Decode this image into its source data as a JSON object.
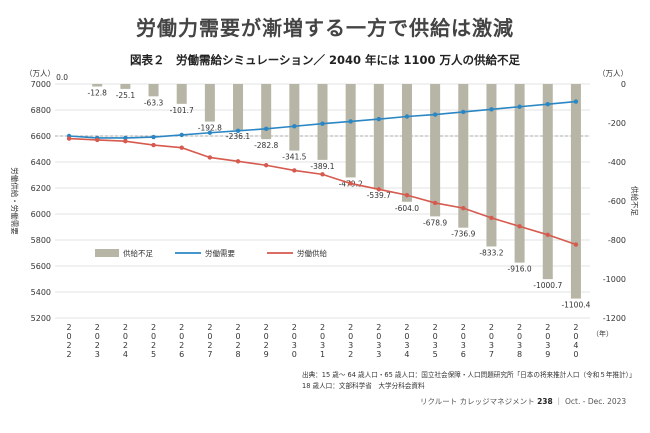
{
  "headline": "労働力需要が漸増する一方で供給は激減",
  "subtitle": "図表２　労働需給シミュレーション／ 2040 年には 1100 万人の供給不足",
  "colors": {
    "bar": "#b7b5a6",
    "demand": "#2b86c4",
    "supply": "#d65a4e",
    "grid": "#c8c8c8",
    "dash": "#9a9a9a"
  },
  "chart_data": {
    "type": "bar+line",
    "categories": [
      "2022",
      "2023",
      "2024",
      "2025",
      "2026",
      "2027",
      "2028",
      "2029",
      "2030",
      "2031",
      "2032",
      "2033",
      "2034",
      "2035",
      "2036",
      "2037",
      "2038",
      "2039",
      "2040"
    ],
    "x_unit": "（年）",
    "left_axis": {
      "label": "労働供給・労働需要",
      "unit": "（万人）",
      "ylim": [
        5200,
        7000
      ],
      "ticks": [
        5200,
        5400,
        5600,
        5800,
        6000,
        6200,
        6400,
        6600,
        6800,
        7000
      ]
    },
    "right_axis": {
      "label": "供給不足",
      "unit": "（万人）",
      "ylim": [
        -1200,
        0
      ],
      "ticks": [
        0,
        -200,
        -400,
        -600,
        -800,
        -1000,
        -1200
      ]
    },
    "series": [
      {
        "name": "供給不足",
        "type": "bar",
        "axis": "right",
        "values": [
          0.0,
          -12.8,
          -25.1,
          -63.3,
          -101.7,
          -192.8,
          -236.1,
          -282.8,
          -341.5,
          -389.1,
          -479.2,
          -539.7,
          -604.0,
          -678.9,
          -736.9,
          -833.2,
          -916.0,
          -1000.7,
          -1100.4
        ],
        "labels": [
          "0.0",
          "-12.8",
          "-25.1",
          "-63.3",
          "-101.7",
          "-192.8",
          "-236.1",
          "-282.8",
          "-341.5",
          "-389.1",
          "-479.2",
          "-539.7",
          "-604.0",
          "-678.9",
          "-736.9",
          "-833.2",
          "-916.0",
          "-1000.7",
          "-1100.4"
        ]
      },
      {
        "name": "労働需要",
        "type": "line",
        "axis": "left",
        "values": [
          6600,
          6585,
          6585,
          6592,
          6608,
          6625,
          6640,
          6655,
          6675,
          6695,
          6712,
          6730,
          6750,
          6765,
          6785,
          6805,
          6825,
          6845,
          6865
        ]
      },
      {
        "name": "労働供給",
        "type": "line",
        "axis": "left",
        "values": [
          6580,
          6570,
          6560,
          6530,
          6510,
          6435,
          6405,
          6375,
          6335,
          6305,
          6235,
          6190,
          6145,
          6085,
          6045,
          5970,
          5905,
          5840,
          5765
        ]
      }
    ],
    "legend": [
      "供給不足",
      "労働需要",
      "労働供給"
    ],
    "legend_position": "lower-left"
  },
  "source": {
    "line1": "出典：15 歳～ 64 歳人口・65 歳人口：国立社会保障・人口問題研究所「日本の将来推計人口（令和５年推計）」",
    "line2": "18 歳人口：文部科学省　大学分科会資料"
  },
  "footer": {
    "publication": "リクルート カレッジマネジメント",
    "page": "238",
    "issue": "｜ Oct. - Dec. 2023"
  }
}
